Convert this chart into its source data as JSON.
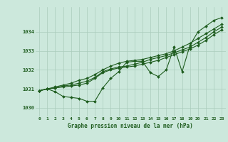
{
  "bg_color": "#cce8dc",
  "grid_color": "#aaccbb",
  "line_color": "#1e5c1e",
  "xlabel": "Graphe pression niveau de la mer (hPa)",
  "xlim": [
    -0.5,
    23.5
  ],
  "ylim": [
    1029.55,
    1035.3
  ],
  "yticks": [
    1030,
    1031,
    1032,
    1033,
    1034
  ],
  "xticks": [
    0,
    1,
    2,
    3,
    4,
    5,
    6,
    7,
    8,
    9,
    10,
    11,
    12,
    13,
    14,
    15,
    16,
    17,
    18,
    19,
    20,
    21,
    22,
    23
  ],
  "line1": [
    1030.9,
    1031.0,
    1030.85,
    1030.6,
    1030.55,
    1030.5,
    1030.35,
    1030.35,
    1031.05,
    1031.55,
    1031.9,
    1032.4,
    1032.45,
    1032.45,
    1031.85,
    1031.65,
    1032.0,
    1033.2,
    1031.9,
    1033.3,
    1034.0,
    1034.3,
    1034.6,
    1034.75
  ],
  "line2": [
    1030.9,
    1031.0,
    1031.05,
    1031.1,
    1031.15,
    1031.2,
    1031.3,
    1031.55,
    1031.85,
    1032.0,
    1032.1,
    1032.15,
    1032.2,
    1032.3,
    1032.4,
    1032.5,
    1032.65,
    1032.8,
    1032.95,
    1033.1,
    1033.3,
    1033.55,
    1033.85,
    1034.1
  ],
  "line3": [
    1030.9,
    1031.0,
    1031.05,
    1031.15,
    1031.2,
    1031.3,
    1031.4,
    1031.6,
    1031.9,
    1032.05,
    1032.15,
    1032.2,
    1032.3,
    1032.4,
    1032.55,
    1032.65,
    1032.75,
    1032.9,
    1033.05,
    1033.2,
    1033.45,
    1033.7,
    1034.0,
    1034.25
  ],
  "line4": [
    1030.9,
    1031.0,
    1031.1,
    1031.2,
    1031.3,
    1031.45,
    1031.55,
    1031.75,
    1032.0,
    1032.2,
    1032.35,
    1032.45,
    1032.5,
    1032.55,
    1032.65,
    1032.75,
    1032.85,
    1033.0,
    1033.2,
    1033.4,
    1033.65,
    1033.9,
    1034.15,
    1034.4
  ]
}
